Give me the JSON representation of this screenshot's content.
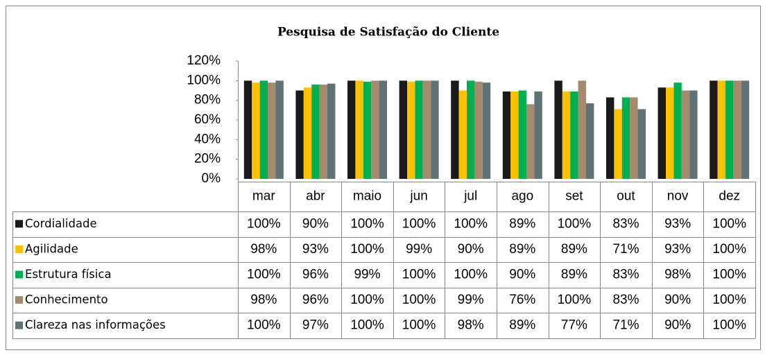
{
  "chart_data": {
    "type": "bar",
    "title": "Pesquisa de Satisfação do Cliente",
    "categories": [
      "mar",
      "abr",
      "maio",
      "jun",
      "jul",
      "ago",
      "set",
      "out",
      "nov",
      "dez"
    ],
    "series": [
      {
        "name": "Cordialidade",
        "color": "#1a1a1a",
        "values": [
          100,
          90,
          100,
          100,
          100,
          89,
          100,
          83,
          93,
          100
        ],
        "value_labels": [
          "100%",
          "90%",
          "100%",
          "100%",
          "100%",
          "89%",
          "100%",
          "83%",
          "93%",
          "100%"
        ]
      },
      {
        "name": "Agilidade",
        "color": "#ffc000",
        "values": [
          98,
          93,
          100,
          99,
          90,
          89,
          89,
          71,
          93,
          100
        ],
        "value_labels": [
          "98%",
          "93%",
          "100%",
          "99%",
          "90%",
          "89%",
          "89%",
          "71%",
          "93%",
          "100%"
        ]
      },
      {
        "name": "Estrutura física",
        "color": "#00b050",
        "values": [
          100,
          96,
          99,
          100,
          100,
          90,
          89,
          83,
          98,
          100
        ],
        "value_labels": [
          "100%",
          "96%",
          "99%",
          "100%",
          "100%",
          "90%",
          "89%",
          "83%",
          "98%",
          "100%"
        ]
      },
      {
        "name": "Conhecimento",
        "color": "#a68a6d",
        "values": [
          98,
          96,
          100,
          100,
          99,
          76,
          100,
          83,
          90,
          100
        ],
        "value_labels": [
          "98%",
          "96%",
          "100%",
          "100%",
          "99%",
          "76%",
          "100%",
          "83%",
          "90%",
          "100%"
        ]
      },
      {
        "name": "Clareza nas informações",
        "color": "#5f7376",
        "values": [
          100,
          97,
          100,
          100,
          98,
          89,
          77,
          71,
          90,
          100
        ],
        "value_labels": [
          "100%",
          "97%",
          "100%",
          "100%",
          "98%",
          "89%",
          "77%",
          "71%",
          "90%",
          "100%"
        ]
      }
    ],
    "ylim": [
      0,
      120
    ],
    "yticks": [
      {
        "value": 0,
        "label": "0%"
      },
      {
        "value": 20,
        "label": "20%"
      },
      {
        "value": 40,
        "label": "40%"
      },
      {
        "value": 60,
        "label": "60%"
      },
      {
        "value": 80,
        "label": "80%"
      },
      {
        "value": 100,
        "label": "100%"
      },
      {
        "value": 120,
        "label": "120%"
      }
    ]
  }
}
